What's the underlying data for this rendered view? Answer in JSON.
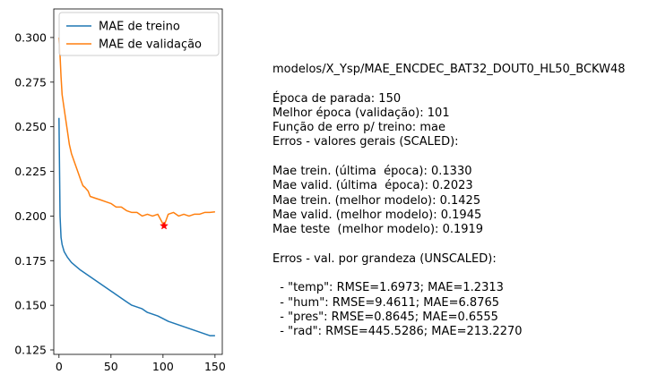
{
  "chart_data": {
    "type": "line",
    "x_ticks": [
      0,
      50,
      100,
      150
    ],
    "y_ticks": [
      "0.125",
      "0.150",
      "0.175",
      "0.200",
      "0.225",
      "0.250",
      "0.275",
      "0.300"
    ],
    "xlim": [
      -5,
      157
    ],
    "ylim": [
      0.1225,
      0.316
    ],
    "legend_position": "top-left",
    "series": [
      {
        "name": "MAE de treino",
        "color": "#1f77b4",
        "points": [
          [
            0,
            0.255
          ],
          [
            1,
            0.2
          ],
          [
            2,
            0.188
          ],
          [
            3,
            0.184
          ],
          [
            5,
            0.18
          ],
          [
            8,
            0.177
          ],
          [
            12,
            0.174
          ],
          [
            16,
            0.172
          ],
          [
            20,
            0.17
          ],
          [
            25,
            0.168
          ],
          [
            30,
            0.166
          ],
          [
            35,
            0.164
          ],
          [
            40,
            0.162
          ],
          [
            45,
            0.16
          ],
          [
            50,
            0.158
          ],
          [
            55,
            0.156
          ],
          [
            60,
            0.154
          ],
          [
            65,
            0.152
          ],
          [
            70,
            0.15
          ],
          [
            75,
            0.149
          ],
          [
            80,
            0.148
          ],
          [
            85,
            0.146
          ],
          [
            90,
            0.145
          ],
          [
            95,
            0.144
          ],
          [
            100,
            0.1425
          ],
          [
            105,
            0.141
          ],
          [
            110,
            0.14
          ],
          [
            115,
            0.139
          ],
          [
            120,
            0.138
          ],
          [
            125,
            0.137
          ],
          [
            130,
            0.136
          ],
          [
            135,
            0.135
          ],
          [
            140,
            0.134
          ],
          [
            145,
            0.133
          ],
          [
            150,
            0.133
          ]
        ]
      },
      {
        "name": "MAE de validação",
        "color": "#ff7f0e",
        "points": [
          [
            0,
            0.3
          ],
          [
            1,
            0.29
          ],
          [
            2,
            0.278
          ],
          [
            3,
            0.268
          ],
          [
            5,
            0.26
          ],
          [
            8,
            0.248
          ],
          [
            10,
            0.24
          ],
          [
            12,
            0.235
          ],
          [
            15,
            0.23
          ],
          [
            18,
            0.225
          ],
          [
            21,
            0.22
          ],
          [
            23,
            0.217
          ],
          [
            25,
            0.216
          ],
          [
            28,
            0.214
          ],
          [
            30,
            0.211
          ],
          [
            35,
            0.21
          ],
          [
            40,
            0.209
          ],
          [
            45,
            0.208
          ],
          [
            50,
            0.207
          ],
          [
            55,
            0.205
          ],
          [
            60,
            0.205
          ],
          [
            65,
            0.203
          ],
          [
            70,
            0.202
          ],
          [
            75,
            0.202
          ],
          [
            80,
            0.2
          ],
          [
            85,
            0.201
          ],
          [
            90,
            0.2
          ],
          [
            95,
            0.201
          ],
          [
            101,
            0.1945
          ],
          [
            105,
            0.201
          ],
          [
            110,
            0.202
          ],
          [
            115,
            0.2
          ],
          [
            120,
            0.201
          ],
          [
            125,
            0.2
          ],
          [
            130,
            0.201
          ],
          [
            135,
            0.201
          ],
          [
            140,
            0.202
          ],
          [
            145,
            0.202
          ],
          [
            150,
            0.2023
          ]
        ]
      }
    ],
    "best_marker": {
      "x": 101,
      "y": 0.1945,
      "color": "#ff0000"
    }
  },
  "info": {
    "lines": [
      "modelos/X_Ysp/MAE_ENCDEC_BAT32_DOUT0_HL50_BCKW48",
      "",
      "Época de parada: 150",
      "Melhor época (validação): 101",
      "Função de erro p/ treino: mae",
      "Erros - valores gerais (SCALED):",
      "",
      "Mae trein. (última  época): 0.1330",
      "Mae valid. (última  época): 0.2023",
      "Mae trein. (melhor modelo): 0.1425",
      "Mae valid. (melhor modelo): 0.1945",
      "Mae teste  (melhor modelo): 0.1919",
      "",
      "Erros - val. por grandeza (UNSCALED):",
      "",
      "  - \"temp\": RMSE=1.6973; MAE=1.2313",
      "  - \"hum\": RMSE=9.4611; MAE=6.8765",
      "  - \"pres\": RMSE=0.8645; MAE=0.6555",
      "  - \"rad\": RMSE=445.5286; MAE=213.2270"
    ]
  }
}
